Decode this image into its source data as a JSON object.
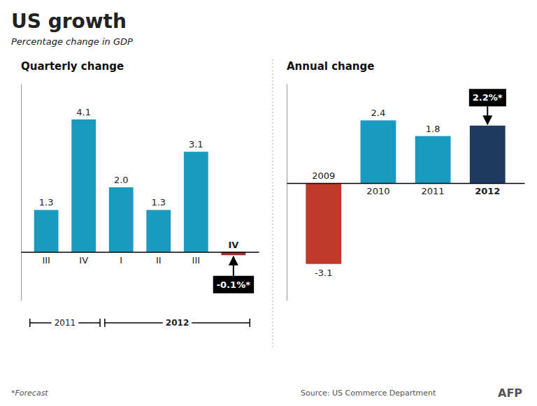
{
  "title": "US growth",
  "subtitle": "Percentage change in GDP",
  "annotations": [
    "*Forecast",
    "Source: US Commerce Department",
    "AFP"
  ],
  "chart_data": [
    {
      "type": "bar",
      "title": "Quarterly change",
      "categories": [
        "III",
        "IV",
        "I",
        "II",
        "III",
        "IV"
      ],
      "values": [
        1.3,
        4.1,
        2.0,
        1.3,
        3.1,
        -0.1
      ],
      "value_labels": [
        "1.3",
        "4.1",
        "2.0",
        "1.3",
        "3.1",
        "-0.1%*"
      ],
      "colors": [
        "#1a9abf",
        "#1a9abf",
        "#1a9abf",
        "#1a9abf",
        "#1a9abf",
        "#a03030"
      ],
      "ylim": [
        -1.5,
        5.2
      ],
      "data_labels": true,
      "tick_labels": "x",
      "annotations": [
        "2011",
        "2012"
      ]
    },
    {
      "type": "bar",
      "title": "Annual change",
      "categories": [
        "2009",
        "2010",
        "2011",
        "2012"
      ],
      "values": [
        -3.1,
        2.4,
        1.8,
        2.2
      ],
      "value_labels": [
        "-3.1",
        "2.4",
        "1.8",
        "2.2%*"
      ],
      "colors": [
        "#c0392b",
        "#1a9abf",
        "#1a9abf",
        "#1e3a5f"
      ],
      "ylim": [
        -4.5,
        3.8
      ],
      "data_labels": true,
      "tick_labels": "x"
    }
  ]
}
